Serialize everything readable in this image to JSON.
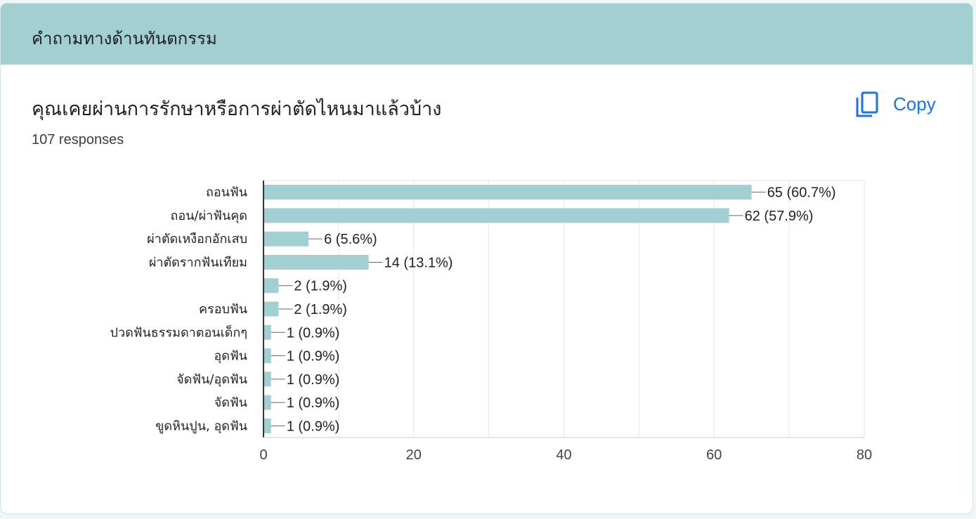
{
  "section": {
    "title": "คำถามทางด้านทันตกรรม"
  },
  "question": {
    "title": "คุณเคยผ่านการรักษาหรือการผ่าตัดไหนมาแล้วบ้าง",
    "responses": "107 responses"
  },
  "copy": {
    "label": "Copy",
    "icon": "copy-icon"
  },
  "colors": {
    "header": "#a2d0d2",
    "bar": "#a2d0d2",
    "accent": "#1a73e8",
    "grid": "#e6e6e6",
    "axis": "#333333"
  },
  "chart_data": {
    "type": "bar",
    "orientation": "horizontal",
    "categories": [
      "ถอนฟัน",
      "ถอน/ผ่าฟันคุด",
      "ผ่าตัดเหงือกอักเสบ",
      "ผ่าตัดรากฟันเทียม",
      "",
      "ครอบฟัน",
      "ปวดฟันธรรมดาตอนเด็กๆ",
      "อุดฟัน",
      "จัดฟัน/อุดฟัน",
      "จัดฟัน",
      "ขูดหินปูน, อุดฟัน"
    ],
    "values": [
      65,
      62,
      6,
      14,
      2,
      2,
      1,
      1,
      1,
      1,
      1
    ],
    "data_labels": [
      "65 (60.7%)",
      "62 (57.9%)",
      "6 (5.6%)",
      "14 (13.1%)",
      "2 (1.9%)",
      "2 (1.9%)",
      "1 (0.9%)",
      "1 (0.9%)",
      "1 (0.9%)",
      "1 (0.9%)",
      "1 (0.9%)"
    ],
    "xlim": [
      0,
      80
    ],
    "xticks": [
      0,
      20,
      40,
      60,
      80
    ],
    "grid": true,
    "legend": "none",
    "title": "",
    "xlabel": "",
    "ylabel": ""
  }
}
